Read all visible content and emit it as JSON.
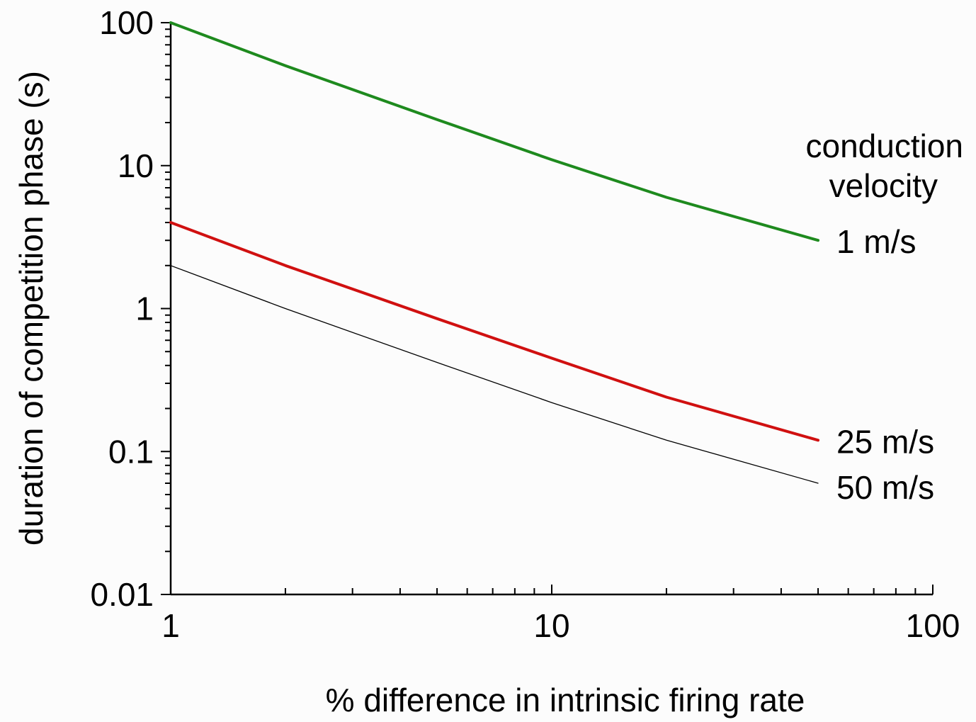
{
  "chart_data": {
    "type": "line",
    "title": "",
    "xlabel": "% difference in intrinsic firing rate",
    "ylabel": "duration of competition phase (s)",
    "x_scale": "log",
    "y_scale": "log",
    "xlim": [
      1,
      100
    ],
    "ylim": [
      0.01,
      100
    ],
    "x_ticks": [
      1,
      10,
      100
    ],
    "x_tick_labels": [
      "1",
      "10",
      "100"
    ],
    "y_ticks": [
      0.01,
      0.1,
      1,
      10,
      100
    ],
    "y_tick_labels": [
      "0.01",
      "0.1",
      "1",
      "10",
      "100"
    ],
    "grid": false,
    "legend_title": [
      "conduction",
      "velocity"
    ],
    "legend_placement": "right, labels at line ends",
    "series": [
      {
        "name": "1 m/s",
        "color": "#1e8a1e",
        "x": [
          1,
          2,
          5,
          10,
          20,
          50
        ],
        "values": [
          100,
          50,
          21,
          11,
          6,
          3
        ]
      },
      {
        "name": "25 m/s",
        "color": "#d01010",
        "x": [
          1,
          2,
          5,
          10,
          20,
          50
        ],
        "values": [
          4,
          2,
          0.85,
          0.45,
          0.24,
          0.12
        ]
      },
      {
        "name": "50 m/s",
        "color": "#000000",
        "x": [
          1,
          2,
          5,
          10,
          20,
          50
        ],
        "values": [
          2,
          1,
          0.42,
          0.22,
          0.12,
          0.06
        ]
      }
    ]
  }
}
